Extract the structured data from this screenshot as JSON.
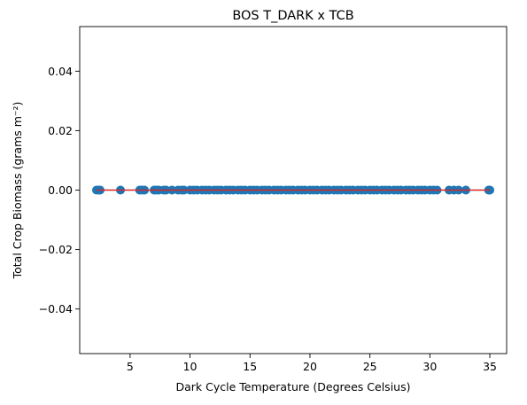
{
  "chart_data": {
    "type": "scatter",
    "title": "BOS T_DARK x TCB",
    "xlabel": "Dark Cycle Temperature (Degrees Celsius)",
    "ylabel": "Total Crop Biomass (grams m⁻²)",
    "xlim": [
      0.8,
      36.4
    ],
    "ylim": [
      -0.055,
      0.055
    ],
    "xticks": [
      5,
      10,
      15,
      20,
      25,
      30,
      35
    ],
    "yticks": [
      -0.04,
      -0.02,
      0.0,
      0.02,
      0.04
    ],
    "xtick_labels": [
      "5",
      "10",
      "15",
      "20",
      "25",
      "30",
      "35"
    ],
    "ytick_labels": [
      "−0.04",
      "−0.02",
      "0.00",
      "0.02",
      "0.04"
    ],
    "grid": false,
    "legend": "none",
    "series": [
      {
        "kind": "points",
        "color": "#1f77b4",
        "x": [
          2.2,
          2.4,
          2.5,
          4.2,
          5.8,
          6.0,
          6.2,
          7.0,
          7.2,
          7.4,
          7.8,
          8.0,
          8.5,
          9.0,
          9.3,
          9.5,
          10.0,
          10.3,
          10.6,
          11.0,
          11.3,
          11.6,
          12.0,
          12.3,
          12.6,
          13.0,
          13.3,
          13.6,
          14.0,
          14.3,
          14.6,
          15.0,
          15.3,
          15.6,
          16.0,
          16.3,
          16.6,
          17.0,
          17.3,
          17.6,
          18.0,
          18.3,
          18.6,
          19.0,
          19.3,
          19.6,
          20.0,
          20.3,
          20.6,
          21.0,
          21.3,
          21.6,
          22.0,
          22.3,
          22.6,
          23.0,
          23.3,
          23.6,
          24.0,
          24.3,
          24.6,
          25.0,
          25.3,
          25.6,
          26.0,
          26.3,
          26.6,
          27.0,
          27.3,
          27.6,
          28.0,
          28.3,
          28.6,
          29.0,
          29.3,
          29.6,
          30.0,
          30.3,
          30.6,
          31.6,
          32.0,
          32.4,
          33.0,
          34.9,
          35.0
        ],
        "y_constant": 0.0
      },
      {
        "kind": "fit-line",
        "color": "#d62728",
        "x": [
          2.2,
          35.0
        ],
        "y": [
          0.0,
          0.0
        ]
      }
    ]
  }
}
